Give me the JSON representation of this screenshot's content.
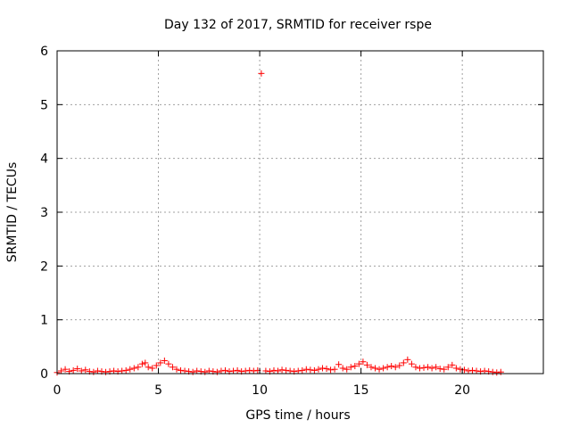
{
  "chart_data": {
    "type": "scatter",
    "title": "Day 132 of 2017, SRMTID for receiver rspe",
    "xlabel": "GPS time / hours",
    "ylabel": "SRMTID / TECUs",
    "xlim": [
      0,
      24
    ],
    "ylim": [
      0,
      6
    ],
    "xticks": [
      0,
      5,
      10,
      15,
      20
    ],
    "yticks": [
      0,
      1,
      2,
      3,
      4,
      5,
      6
    ],
    "grid": true,
    "marker": "+",
    "colors": {
      "series": "#ff0000",
      "grid": "#a0a0a0",
      "axis": "#000000"
    },
    "series": [
      {
        "x": [
          0.0,
          0.2,
          0.4,
          0.6,
          0.8,
          1.0,
          1.2,
          1.4,
          1.6,
          1.8,
          2.0,
          2.2,
          2.4,
          2.6,
          2.8,
          3.0,
          3.2,
          3.4,
          3.6,
          3.8,
          4.0,
          4.2,
          4.35,
          4.5,
          4.7,
          4.9,
          5.1,
          5.3,
          5.5,
          5.7,
          5.9,
          6.1,
          6.3,
          6.5,
          6.7,
          6.9,
          7.1,
          7.3,
          7.5,
          7.7,
          7.9,
          8.1,
          8.3,
          8.5,
          8.7,
          8.9,
          9.1,
          9.3,
          9.5,
          9.7,
          9.9,
          10.08,
          10.3,
          10.5,
          10.7,
          10.9,
          11.1,
          11.3,
          11.5,
          11.7,
          11.9,
          12.1,
          12.3,
          12.5,
          12.7,
          12.9,
          13.1,
          13.3,
          13.5,
          13.7,
          13.9,
          14.1,
          14.3,
          14.5,
          14.7,
          14.9,
          15.1,
          15.3,
          15.5,
          15.7,
          15.9,
          16.1,
          16.3,
          16.5,
          16.7,
          16.9,
          17.1,
          17.3,
          17.5,
          17.7,
          17.9,
          18.1,
          18.3,
          18.5,
          18.7,
          18.9,
          19.1,
          19.3,
          19.5,
          19.7,
          19.9,
          20.1,
          20.3,
          20.5,
          20.7,
          20.9,
          21.1,
          21.3,
          21.5,
          21.7,
          21.9
        ],
        "y": [
          0.02,
          0.05,
          0.08,
          0.04,
          0.06,
          0.09,
          0.05,
          0.07,
          0.04,
          0.03,
          0.05,
          0.04,
          0.03,
          0.04,
          0.05,
          0.04,
          0.05,
          0.06,
          0.08,
          0.1,
          0.12,
          0.18,
          0.2,
          0.12,
          0.1,
          0.15,
          0.2,
          0.24,
          0.18,
          0.12,
          0.08,
          0.06,
          0.05,
          0.04,
          0.03,
          0.05,
          0.04,
          0.03,
          0.05,
          0.04,
          0.03,
          0.05,
          0.06,
          0.04,
          0.05,
          0.06,
          0.04,
          0.05,
          0.06,
          0.05,
          0.06,
          5.58,
          0.05,
          0.04,
          0.06,
          0.05,
          0.07,
          0.06,
          0.05,
          0.04,
          0.05,
          0.06,
          0.08,
          0.07,
          0.06,
          0.08,
          0.1,
          0.09,
          0.07,
          0.08,
          0.17,
          0.1,
          0.08,
          0.12,
          0.14,
          0.18,
          0.22,
          0.16,
          0.12,
          0.1,
          0.08,
          0.1,
          0.12,
          0.14,
          0.12,
          0.15,
          0.2,
          0.26,
          0.18,
          0.12,
          0.1,
          0.11,
          0.12,
          0.1,
          0.12,
          0.09,
          0.08,
          0.12,
          0.16,
          0.1,
          0.08,
          0.07,
          0.05,
          0.06,
          0.05,
          0.04,
          0.05,
          0.04,
          0.03,
          0.02,
          0.03
        ]
      }
    ]
  }
}
